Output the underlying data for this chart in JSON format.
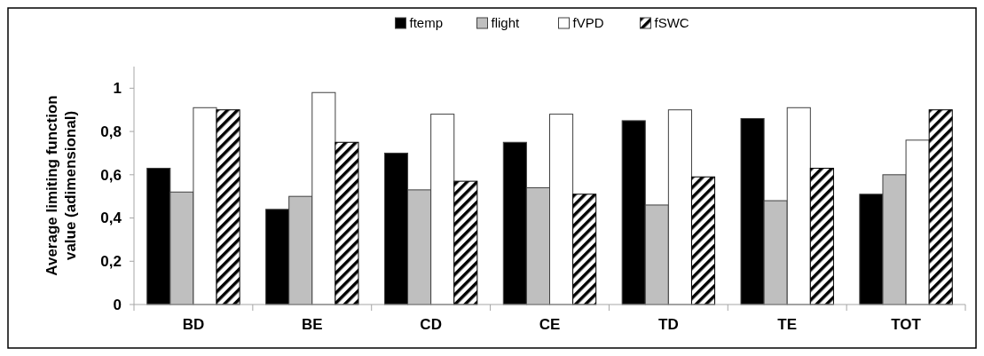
{
  "chart_data": {
    "type": "bar",
    "ylabel": "Average limiting function value (adimensional)",
    "categories": [
      "BD",
      "BE",
      "CD",
      "CE",
      "TD",
      "TE",
      "TOT"
    ],
    "series": [
      {
        "name": "ftemp",
        "color": "#000000",
        "values": [
          0.63,
          0.44,
          0.7,
          0.75,
          0.85,
          0.86,
          0.51
        ]
      },
      {
        "name": "flight",
        "color": "#bfbfbf",
        "values": [
          0.52,
          0.5,
          0.53,
          0.54,
          0.46,
          0.48,
          0.6
        ]
      },
      {
        "name": "fVPD",
        "color": "#ffffff",
        "values": [
          0.91,
          0.98,
          0.88,
          0.88,
          0.9,
          0.91,
          0.76
        ]
      },
      {
        "name": "fSWC",
        "color": "#000000",
        "values": [
          0.9,
          0.75,
          0.57,
          0.51,
          0.59,
          0.63,
          0.9
        ]
      }
    ],
    "ylim": [
      0,
      1.1
    ],
    "yticks": [
      0,
      {
        "value": 0.2,
        "label": "0,2"
      },
      {
        "value": 0.4,
        "label": "0,4"
      },
      {
        "value": 0.6,
        "label": "0,6"
      },
      {
        "value": 0.8,
        "label": "0,8"
      },
      1
    ],
    "legend": "top",
    "grid": false
  }
}
